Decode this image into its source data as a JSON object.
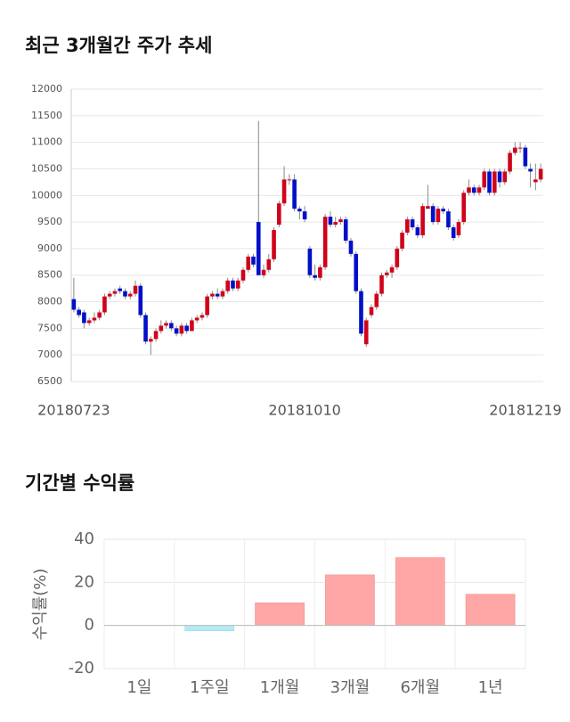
{
  "chart_data": [
    {
      "type": "candlestick",
      "title": "최근 3개월간 주가 추세",
      "x": [
        "20180723",
        null,
        null,
        null,
        null,
        null,
        null,
        null,
        null,
        null,
        null,
        null,
        null,
        null,
        null,
        null,
        null,
        null,
        null,
        null,
        null,
        null,
        null,
        null,
        null,
        null,
        null,
        null,
        null,
        null,
        null,
        null,
        null,
        null,
        null,
        null,
        null,
        null,
        null,
        null,
        null,
        null,
        null,
        null,
        null,
        "20181010",
        null,
        null,
        null,
        null,
        null,
        null,
        null,
        null,
        null,
        null,
        null,
        null,
        null,
        null,
        null,
        null,
        null,
        null,
        null,
        null,
        null,
        null,
        null,
        null,
        null,
        null,
        null,
        null,
        null,
        null,
        null,
        null,
        null,
        null,
        null,
        null,
        null,
        null,
        null,
        null,
        null,
        null,
        null,
        null,
        null,
        "20181219"
      ],
      "open": [
        8050,
        7850,
        7800,
        7600,
        7650,
        7700,
        7800,
        8100,
        8150,
        8250,
        8200,
        8100,
        8150,
        8300,
        7750,
        7250,
        7300,
        7450,
        7550,
        7600,
        7500,
        7400,
        7550,
        7450,
        7650,
        7700,
        7750,
        8100,
        8150,
        8100,
        8200,
        8400,
        8250,
        8400,
        8600,
        8850,
        9500,
        8500,
        8600,
        8800,
        9450,
        9850,
        10300,
        10300,
        9750,
        9700,
        9000,
        8500,
        8450,
        8650,
        9600,
        9450,
        9500,
        9550,
        9150,
        8900,
        8200,
        7200,
        7750,
        7900,
        8150,
        8500,
        8550,
        8650,
        9000,
        9300,
        9550,
        9400,
        9250,
        9750,
        9800,
        9500,
        9750,
        9700,
        9400,
        9250,
        9500,
        10050,
        10150,
        10050,
        10150,
        10450,
        10050,
        10450,
        10250,
        10450,
        10800,
        10900,
        10900,
        10500,
        10250,
        10300
      ],
      "high": [
        8450,
        7900,
        7850,
        7700,
        7800,
        7850,
        8150,
        8200,
        8250,
        8300,
        8250,
        8200,
        8400,
        8350,
        7800,
        7350,
        7500,
        7650,
        7650,
        7650,
        7550,
        7600,
        7600,
        7700,
        7750,
        7800,
        8150,
        8200,
        8250,
        8250,
        8450,
        8450,
        8450,
        8650,
        8900,
        8900,
        11400,
        8700,
        8900,
        9400,
        9900,
        10550,
        10400,
        10400,
        9800,
        9800,
        9050,
        8700,
        8700,
        9650,
        9700,
        9600,
        9600,
        9600,
        9200,
        8950,
        8250,
        7700,
        7950,
        8200,
        8550,
        8600,
        8700,
        9050,
        9350,
        9600,
        9600,
        9450,
        9850,
        10200,
        9850,
        9800,
        9800,
        9750,
        9450,
        9550,
        10100,
        10300,
        10200,
        10200,
        10500,
        10500,
        10500,
        10500,
        10500,
        10850,
        11000,
        11000,
        10950,
        10600,
        10600,
        10600
      ],
      "low": [
        7800,
        7700,
        7500,
        7550,
        7600,
        7650,
        7750,
        8050,
        8100,
        8150,
        8050,
        8050,
        8100,
        7700,
        7200,
        7000,
        7250,
        7400,
        7500,
        7450,
        7350,
        7350,
        7400,
        7450,
        7600,
        7650,
        7700,
        8050,
        8050,
        8050,
        8150,
        8200,
        8200,
        8350,
        8550,
        8650,
        8500,
        8450,
        8550,
        8750,
        9400,
        9800,
        10200,
        9700,
        9550,
        9500,
        8450,
        8400,
        8400,
        8600,
        9400,
        9400,
        9450,
        9100,
        8850,
        8150,
        7350,
        7150,
        7700,
        7850,
        8100,
        8450,
        8450,
        8600,
        8950,
        9250,
        9350,
        9200,
        9200,
        9750,
        9450,
        9450,
        9650,
        9350,
        9150,
        9200,
        9450,
        10000,
        10000,
        10000,
        10100,
        10000,
        10000,
        10150,
        10200,
        10400,
        10750,
        10800,
        10500,
        10150,
        10100,
        10250
      ],
      "close": [
        7850,
        7750,
        7600,
        7650,
        7700,
        7800,
        8100,
        8150,
        8200,
        8200,
        8100,
        8150,
        8300,
        7750,
        7250,
        7300,
        7450,
        7550,
        7600,
        7500,
        7400,
        7550,
        7450,
        7650,
        7700,
        7750,
        8100,
        8150,
        8100,
        8200,
        8400,
        8250,
        8400,
        8600,
        8850,
        8700,
        8500,
        8600,
        8800,
        9350,
        9850,
        10300,
        10300,
        9750,
        9700,
        9550,
        8500,
        8450,
        8650,
        9600,
        9450,
        9500,
        9550,
        9150,
        8900,
        8200,
        7400,
        7650,
        7900,
        8150,
        8500,
        8550,
        8650,
        9000,
        9300,
        9550,
        9400,
        9250,
        9800,
        9800,
        9500,
        9750,
        9700,
        9400,
        9200,
        9500,
        10050,
        10150,
        10050,
        10150,
        10450,
        10050,
        10450,
        10250,
        10450,
        10800,
        10900,
        10900,
        10550,
        10450,
        10300,
        10500
      ],
      "up_color": "#d0021b",
      "down_color": "#0010c8",
      "ylim": [
        6500,
        12000
      ],
      "yticks": [
        6500,
        7000,
        7500,
        8000,
        8500,
        9000,
        9500,
        10000,
        10500,
        11000,
        11500,
        12000
      ],
      "grid": true
    },
    {
      "type": "bar",
      "title": "기간별 수익률",
      "y_label": "수익률(%)",
      "categories": [
        "1일",
        "1주일",
        "1개월",
        "3개월",
        "6개월",
        "1년"
      ],
      "values": [
        0,
        -2.5,
        10.5,
        23.5,
        31.5,
        14.5
      ],
      "positive_color": "#ffa6a6",
      "negative_color": "#b3ebf5",
      "ylim": [
        -20,
        40
      ],
      "yticks": [
        -20,
        0,
        20,
        40
      ],
      "grid": true
    }
  ]
}
